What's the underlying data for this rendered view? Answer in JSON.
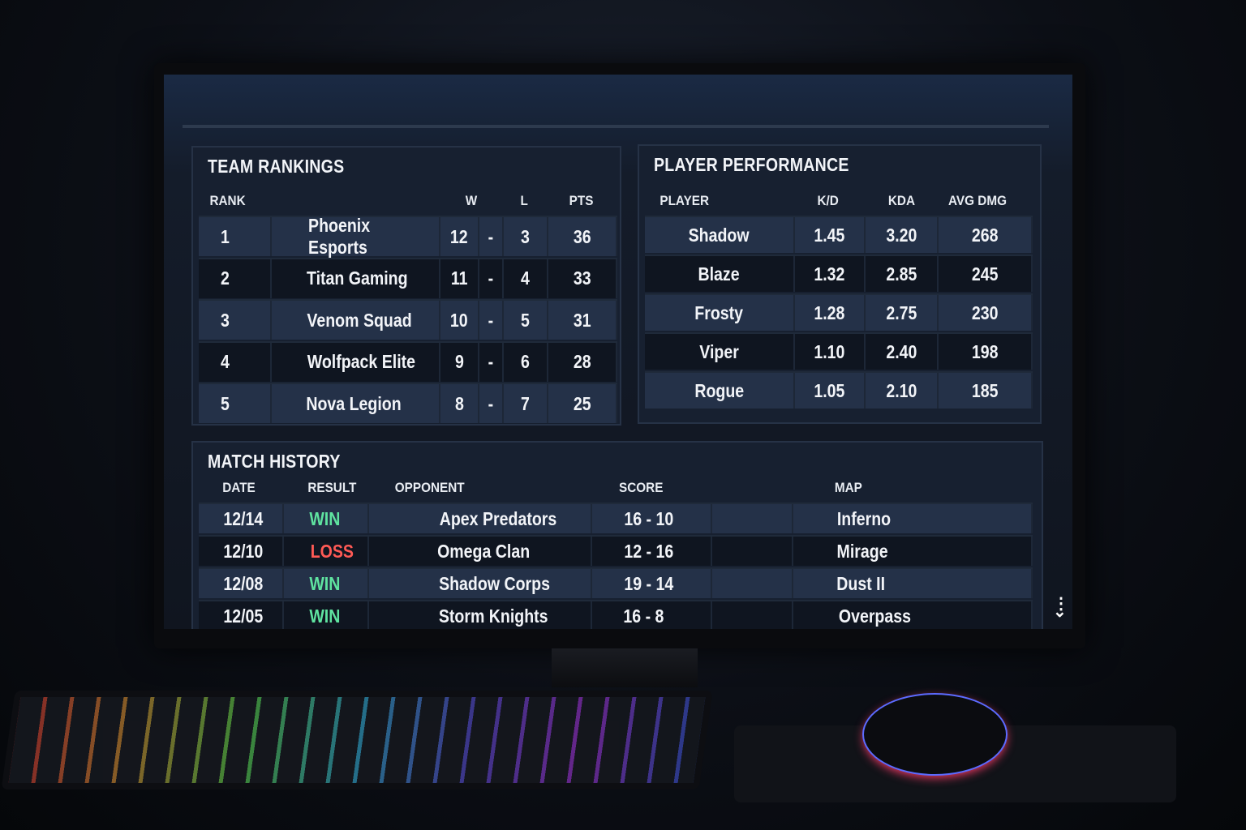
{
  "team_rankings": {
    "title": "TEAM RANKINGS",
    "headers": {
      "rank": "RANK",
      "w": "W",
      "l": "L",
      "pts": "PTS"
    },
    "rows": [
      {
        "rank": "1",
        "team": "Phoenix Esports",
        "w": "12",
        "sep": "-",
        "l": "3",
        "pts": "36"
      },
      {
        "rank": "2",
        "team": "Titan Gaming",
        "w": "11",
        "sep": "-",
        "l": "4",
        "pts": "33"
      },
      {
        "rank": "3",
        "team": "Venom Squad",
        "w": "10",
        "sep": "-",
        "l": "5",
        "pts": "31"
      },
      {
        "rank": "4",
        "team": "Wolfpack Elite",
        "w": "9",
        "sep": "-",
        "l": "6",
        "pts": "28"
      },
      {
        "rank": "5",
        "team": "Nova Legion",
        "w": "8",
        "sep": "-",
        "l": "7",
        "pts": "25"
      }
    ]
  },
  "player_performance": {
    "title": "PLAYER PERFORMANCE",
    "headers": {
      "player": "PLAYER",
      "kd": "K/D",
      "kda": "KDA",
      "avg_dmg": "AVG DMG"
    },
    "rows": [
      {
        "player": "Shadow",
        "kd": "1.45",
        "kda": "3.20",
        "avg_dmg": "268"
      },
      {
        "player": "Blaze",
        "kd": "1.32",
        "kda": "2.85",
        "avg_dmg": "245"
      },
      {
        "player": "Frosty",
        "kd": "1.28",
        "kda": "2.75",
        "avg_dmg": "230"
      },
      {
        "player": "Viper",
        "kd": "1.10",
        "kda": "2.40",
        "avg_dmg": "198"
      },
      {
        "player": "Rogue",
        "kd": "1.05",
        "kda": "2.10",
        "avg_dmg": "185"
      }
    ]
  },
  "match_history": {
    "title": "MATCH HISTORY",
    "headers": {
      "date": "DATE",
      "result": "RESULT",
      "opponent": "OPPONENT",
      "score": "SCORE",
      "map": "MAP"
    },
    "rows": [
      {
        "date": "12/14",
        "result": "WIN",
        "opponent": "Apex Predators",
        "score": "16 - 10",
        "map": "Inferno"
      },
      {
        "date": "12/10",
        "result": "LOSS",
        "opponent": "Omega Clan",
        "score": "12 - 16",
        "map": "Mirage"
      },
      {
        "date": "12/08",
        "result": "WIN",
        "opponent": "Shadow Corps",
        "score": "19 - 14",
        "map": "Dust II"
      },
      {
        "date": "12/05",
        "result": "WIN",
        "opponent": "Storm Knights",
        "score": "16 - 8",
        "map": "Overpass"
      }
    ]
  },
  "colors": {
    "win": "#5fe3a0",
    "loss": "#ff5a55",
    "panel": "#172030"
  },
  "icons": {
    "more": "vertical-dots-chevron-icon"
  }
}
